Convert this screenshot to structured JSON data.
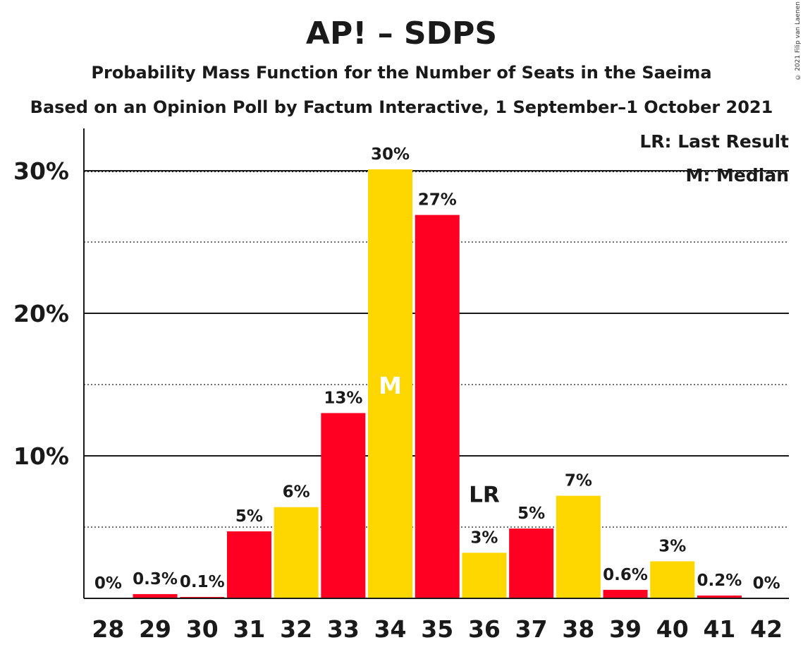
{
  "title": "AP! – SDPS",
  "subtitle1": "Probability Mass Function for the Number of Seats in the Saeima",
  "subtitle2": "Based on an Opinion Poll by Factum Interactive, 1 September–1 October 2021",
  "copyright": "© 2021 Filip van Laenen",
  "legend": {
    "lr": "LR: Last Result",
    "m": "M: Median"
  },
  "colors": {
    "red": "#FF0022",
    "yellow": "#FFD700",
    "text": "#1a1a1a"
  },
  "chart_data": {
    "type": "bar",
    "categories": [
      "28",
      "29",
      "30",
      "31",
      "32",
      "33",
      "34",
      "35",
      "36",
      "37",
      "38",
      "39",
      "40",
      "41",
      "42"
    ],
    "values": [
      0,
      0.3,
      0.1,
      4.7,
      6.4,
      13.0,
      30.1,
      26.9,
      3.2,
      4.9,
      7.2,
      0.6,
      2.6,
      0.2,
      0
    ],
    "labels": [
      "0%",
      "0.3%",
      "0.1%",
      "5%",
      "6%",
      "13%",
      "30%",
      "27%",
      "3%",
      "5%",
      "7%",
      "0.6%",
      "3%",
      "0.2%",
      "0%"
    ],
    "bar_colors": [
      "#FF0022",
      "#FF0022",
      "#FF0022",
      "#FF0022",
      "#FFD700",
      "#FF0022",
      "#FFD700",
      "#FF0022",
      "#FFD700",
      "#FF0022",
      "#FFD700",
      "#FF0022",
      "#FFD700",
      "#FF0022",
      "#FF0022"
    ],
    "y_ticks": [
      "10%",
      "20%",
      "30%"
    ],
    "y_tick_values": [
      10,
      20,
      30
    ],
    "ylim": [
      0,
      32.9
    ],
    "median_category": "34",
    "median_marker": "M",
    "last_result_category": "36",
    "last_result_marker": "LR"
  }
}
